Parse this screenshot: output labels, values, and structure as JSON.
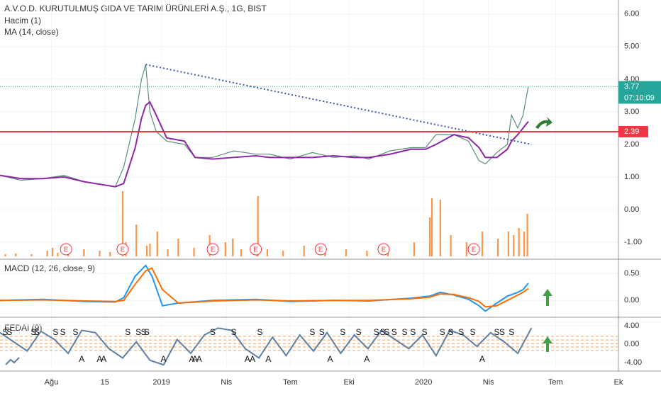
{
  "chart_data": [
    {
      "type": "line",
      "title": "A.V.O.D. KURUTULMUŞ GIDA VE TARIM ÜRÜNLERİ A.Ş., 1G, BIST",
      "x": [
        0,
        20,
        41,
        61,
        81,
        110,
        118,
        129,
        135,
        139,
        143,
        149,
        159,
        176,
        186,
        203,
        223,
        244,
        257,
        277,
        298,
        318,
        338,
        352,
        372,
        392,
        406,
        416,
        433,
        447,
        457,
        463,
        474,
        484,
        488,
        494,
        499,
        504
      ],
      "series": [
        {
          "color": "#5b8c7a",
          "values": [
            1.05,
            0.9,
            0.95,
            1.05,
            0.85,
            0.7,
            1.3,
            2.8,
            4.0,
            4.45,
            3.0,
            2.4,
            2.1,
            2.0,
            1.6,
            1.6,
            1.8,
            1.7,
            1.7,
            1.55,
            1.75,
            1.6,
            1.65,
            1.55,
            1.8,
            1.9,
            1.9,
            2.3,
            2.3,
            2.1,
            1.5,
            1.4,
            1.75,
            2.0,
            2.9,
            2.5,
            2.9,
            3.77
          ]
        },
        {
          "name": "MA (14, close)",
          "color": "#8e24aa",
          "values": [
            1.05,
            0.95,
            0.95,
            1.0,
            0.85,
            0.7,
            0.8,
            1.9,
            2.8,
            3.2,
            3.3,
            2.9,
            2.2,
            2.1,
            1.6,
            1.55,
            1.6,
            1.65,
            1.6,
            1.6,
            1.6,
            1.65,
            1.6,
            1.6,
            1.7,
            1.85,
            1.85,
            2.0,
            2.3,
            2.2,
            1.9,
            1.6,
            1.6,
            1.85,
            2.1,
            2.3,
            2.5,
            2.7
          ]
        }
      ],
      "volume": {
        "name": "Hacim (1)",
        "color": "#f57c1f",
        "x": [
          5,
          15,
          30,
          45,
          50,
          55,
          65,
          80,
          95,
          105,
          117,
          120,
          130,
          140,
          143,
          150,
          160,
          170,
          185,
          200,
          215,
          222,
          230,
          245,
          246,
          255,
          270,
          290,
          310,
          330,
          350,
          370,
          395,
          410,
          412,
          420,
          430,
          445,
          460,
          475,
          485,
          490,
          495,
          500,
          503
        ],
        "values": [
          3,
          4,
          3,
          8,
          12,
          5,
          15,
          10,
          8,
          6,
          92,
          20,
          45,
          15,
          18,
          35,
          10,
          25,
          12,
          30,
          20,
          25,
          10,
          12,
          85,
          10,
          8,
          15,
          12,
          10,
          8,
          15,
          20,
          55,
          82,
          80,
          30,
          20,
          35,
          25,
          35,
          30,
          40,
          35,
          60
        ],
        "ylim": [
          0,
          100
        ]
      },
      "earnings": {
        "label": "E",
        "x": [
          63,
          117,
          203,
          244,
          306,
          366,
          452
        ]
      },
      "trendline": {
        "x": [
          139,
          507
        ],
        "values": [
          4.45,
          2.0
        ],
        "color": "#3f51b5"
      },
      "hline": 2.39,
      "hline_color": "#f23645",
      "last": 3.77,
      "countdown": "07:10:09",
      "last_color": "#26a69a",
      "ylim": [
        -1.5,
        6.43
      ],
      "yticks": [
        {
          "value": 6,
          "label": "6.00"
        },
        {
          "value": 5,
          "label": "5.00"
        },
        {
          "value": 4,
          "label": "4.00"
        },
        {
          "value": 3,
          "label": "3.00"
        },
        {
          "value": 2,
          "label": "2.00"
        },
        {
          "value": 1,
          "label": "1.00"
        },
        {
          "value": 0,
          "label": "0.00"
        },
        {
          "value": -1,
          "label": "-1.00"
        }
      ],
      "xlim": [
        0,
        590
      ],
      "xticks": [
        {
          "value": 49,
          "label": "Ağu"
        },
        {
          "value": 100,
          "label": "15"
        },
        {
          "value": 154,
          "label": "2019"
        },
        {
          "value": 216,
          "label": "Nis"
        },
        {
          "value": 277,
          "label": "Tem"
        },
        {
          "value": 333,
          "label": "Eki"
        },
        {
          "value": 404,
          "label": "2020"
        },
        {
          "value": 466,
          "label": "Nis"
        },
        {
          "value": 530,
          "label": "Tem"
        },
        {
          "value": 590,
          "label": "Ek"
        }
      ]
    },
    {
      "type": "line",
      "title": "MACD (12, 26, close, 9)",
      "x": [
        0,
        41,
        81,
        110,
        118,
        129,
        139,
        145,
        155,
        170,
        203,
        244,
        277,
        318,
        352,
        392,
        410,
        420,
        433,
        447,
        457,
        463,
        474,
        484,
        494,
        499,
        504
      ],
      "series": [
        {
          "color": "#2196f3",
          "values": [
            0,
            0.02,
            -0.02,
            -0.03,
            0.05,
            0.45,
            0.65,
            0.45,
            -0.1,
            -0.05,
            0.0,
            0.02,
            -0.02,
            0.0,
            -0.01,
            0.04,
            0.08,
            0.15,
            0.1,
            0.02,
            -0.1,
            -0.2,
            -0.05,
            0.08,
            0.15,
            0.2,
            0.32
          ]
        },
        {
          "color": "#ff6d00",
          "values": [
            0,
            0.01,
            -0.01,
            -0.02,
            0.0,
            0.3,
            0.55,
            0.6,
            0.2,
            -0.05,
            -0.01,
            0.01,
            -0.01,
            0.0,
            0.0,
            0.03,
            0.06,
            0.12,
            0.11,
            0.05,
            -0.02,
            -0.12,
            -0.1,
            0.0,
            0.1,
            0.15,
            0.22
          ]
        }
      ],
      "ylim": [
        -0.3,
        0.74
      ],
      "yticks": [
        {
          "value": 0.5,
          "label": "0.50"
        },
        {
          "value": 0,
          "label": "0.00"
        }
      ]
    },
    {
      "type": "line",
      "title": "FEDAI (9)",
      "x": [
        0,
        13,
        26,
        39,
        52,
        65,
        78,
        91,
        104,
        117,
        130,
        143,
        156,
        169,
        182,
        195,
        208,
        221,
        234,
        247,
        260,
        273,
        286,
        299,
        312,
        325,
        338,
        351,
        364,
        377,
        390,
        403,
        416,
        429,
        442,
        455,
        468,
        481,
        494,
        507
      ],
      "series": [
        {
          "color": "#5d7fa3",
          "values": [
            2.5,
            0.5,
            -1.5,
            2.8,
            1,
            -2,
            3,
            2.5,
            -1,
            -3,
            0.5,
            -3.5,
            -4.5,
            1,
            -2,
            2,
            3.5,
            3,
            -1,
            -3,
            1.5,
            -2.5,
            2,
            -1.5,
            2.5,
            -2,
            2,
            -1,
            3,
            1,
            -1,
            2,
            -2.5,
            3,
            2,
            -0.5,
            2.5,
            0.5,
            -2,
            3.5
          ]
        }
      ],
      "levels": [
        1.7,
        0.9,
        0.15,
        -0.6,
        -1.4
      ],
      "level_color": "#f5a15a",
      "sell": {
        "label": "S",
        "x": [
          5,
          9,
          32,
          35,
          53,
          60,
          72,
          122,
          132,
          137,
          140,
          203,
          223,
          248,
          298,
          307,
          327,
          342,
          359,
          365,
          369,
          376,
          386,
          394,
          405,
          422,
          430,
          440,
          451,
          474,
          479,
          488
        ]
      },
      "buy": {
        "label": "A",
        "x": [
          78,
          95,
          99,
          156,
          183,
          186,
          190,
          236,
          241,
          256,
          315,
          350,
          460
        ]
      },
      "ylim": [
        -5.54,
        5.54
      ],
      "yticks": [
        {
          "value": 4,
          "label": "4.00"
        },
        {
          "value": 0,
          "label": "0.00"
        },
        {
          "value": -4,
          "label": "-4.00"
        }
      ]
    }
  ]
}
